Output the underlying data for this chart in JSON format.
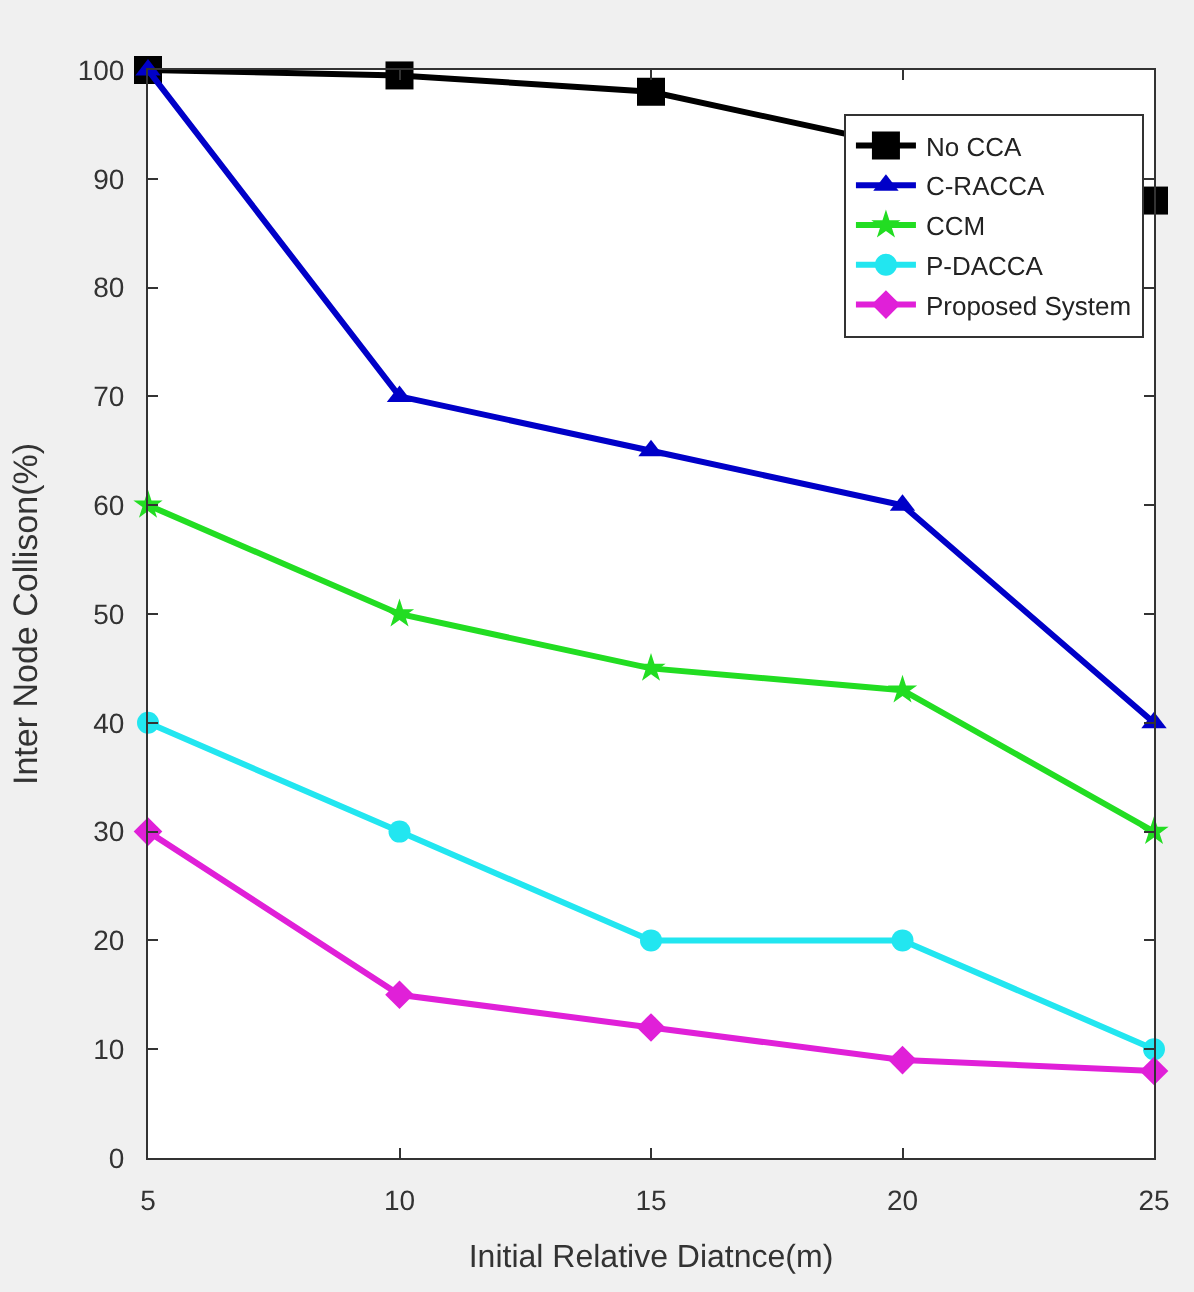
{
  "chart_data": {
    "type": "line",
    "xlabel": "Initial Relative Diatnce(m)",
    "ylabel": "Inter Node Collison(%)",
    "x": [
      5,
      10,
      15,
      20,
      25
    ],
    "xlim": [
      5,
      25
    ],
    "xticks": [
      5,
      10,
      15,
      20,
      25
    ],
    "ylim": [
      0,
      100
    ],
    "yticks": [
      0,
      10,
      20,
      30,
      40,
      50,
      60,
      70,
      80,
      90,
      100
    ],
    "legend": "top right",
    "line_style": "solid",
    "series": [
      {
        "name": "No CCA",
        "color": "#000000",
        "marker": "square",
        "values": [
          100,
          99.5,
          98,
          null,
          88
        ]
      },
      {
        "name": "C-RACCA",
        "color": "#0000c8",
        "marker": "triangle",
        "values": [
          100,
          70,
          65,
          60,
          40
        ]
      },
      {
        "name": "CCM",
        "color": "#22dd22",
        "marker": "star",
        "values": [
          60,
          50,
          45,
          43,
          30
        ]
      },
      {
        "name": "P-DACCA",
        "color": "#22e6f0",
        "marker": "circle",
        "values": [
          40,
          30,
          20,
          20,
          10
        ]
      },
      {
        "name": "Proposed System",
        "color": "#e020d8",
        "marker": "diamond",
        "values": [
          30,
          15,
          12,
          9,
          8
        ]
      }
    ]
  }
}
